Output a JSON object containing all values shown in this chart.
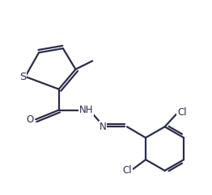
{
  "background_color": "#ffffff",
  "line_color": "#2c2c4a",
  "bond_width": 1.6,
  "font_size": 8.5,
  "figsize": [
    2.62,
    2.42
  ],
  "dpi": 100,
  "xlim": [
    0,
    10
  ],
  "ylim": [
    0,
    9
  ]
}
